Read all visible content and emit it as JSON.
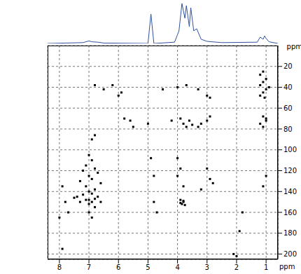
{
  "chart_data": [
    {
      "type": "scatter",
      "xlabel": "ppm",
      "ylabel": "ppm",
      "xlim": [
        8.4,
        0.6
      ],
      "xticks": [
        8,
        7,
        6,
        5,
        4,
        3,
        2,
        1
      ],
      "ylim": [
        205,
        0
      ],
      "yticks": [
        20,
        40,
        60,
        80,
        100,
        120,
        140,
        160,
        180,
        200
      ],
      "grid": true,
      "color": "#000000",
      "marker": "square",
      "x": [
        1.1,
        1.2,
        1.0,
        1.1,
        1.2,
        1.0,
        1.1,
        1.2,
        0.9,
        1.05,
        1.1,
        1.0,
        1.2,
        1.1,
        1.0,
        1.0,
        1.1,
        6.8,
        6.5,
        6.2,
        6.0,
        5.9,
        5.8,
        5.6,
        5.0,
        5.5,
        4.5,
        4.0,
        3.7,
        3.3,
        3.0,
        2.9,
        3.9,
        3.8,
        3.7,
        3.5,
        3.6,
        3.3,
        3.0,
        2.9,
        3.2,
        4.2,
        6.8,
        6.9,
        7.0,
        6.9,
        7.1,
        6.8,
        7.2,
        6.7,
        7.0,
        6.9,
        7.3,
        6.6,
        7.1,
        6.8,
        7.0,
        6.9,
        7.2,
        6.7,
        7.4,
        6.8,
        7.0,
        7.1,
        6.9,
        7.3,
        6.6,
        7.5,
        7.0,
        6.8,
        4.9,
        4.8,
        4.8,
        4.7,
        4.0,
        3.9,
        4.0,
        3.8,
        3.0,
        2.9,
        3.2,
        2.8,
        3.9,
        3.8,
        3.85,
        3.75,
        3.9,
        3.8,
        7.9,
        7.8,
        8.0,
        7.7,
        7.0,
        6.9,
        1.9,
        1.8,
        2.1,
        2.0,
        7.9
      ],
      "values": [
        25,
        28,
        32,
        35,
        38,
        42,
        45,
        48,
        40,
        50,
        68,
        72,
        75,
        78,
        70,
        125,
        135,
        38,
        42,
        38,
        48,
        45,
        70,
        72,
        75,
        78,
        42,
        40,
        38,
        42,
        48,
        50,
        70,
        75,
        78,
        76,
        72,
        78,
        72,
        68,
        75,
        72,
        86,
        90,
        105,
        110,
        115,
        118,
        120,
        122,
        125,
        128,
        130,
        132,
        135,
        138,
        140,
        142,
        143,
        145,
        145,
        147,
        148,
        148,
        150,
        150,
        150,
        146,
        152,
        155,
        108,
        125,
        150,
        160,
        108,
        118,
        125,
        135,
        118,
        128,
        138,
        132,
        148,
        150,
        152,
        153,
        151,
        149,
        135,
        150,
        165,
        160,
        160,
        165,
        178,
        160,
        200,
        202,
        195
      ]
    },
    {
      "type": "line",
      "color": "#3050a0",
      "tick_labels": false,
      "xlim": [
        8.4,
        0.6
      ],
      "ylim": [
        0,
        100
      ],
      "x": [
        8.4,
        7.2,
        7.0,
        6.9,
        6.7,
        6.5,
        5.0,
        4.9,
        4.8,
        4.1,
        3.95,
        3.85,
        3.75,
        3.7,
        3.6,
        3.55,
        3.45,
        3.35,
        3.2,
        3.0,
        2.5,
        1.3,
        1.2,
        1.1,
        1.05,
        1.0,
        0.9,
        0.6
      ],
      "values": [
        0,
        2,
        6,
        4,
        3,
        1,
        0,
        70,
        0,
        3,
        30,
        95,
        60,
        90,
        40,
        85,
        30,
        35,
        10,
        5,
        2,
        3,
        15,
        10,
        18,
        12,
        4,
        0
      ]
    }
  ]
}
